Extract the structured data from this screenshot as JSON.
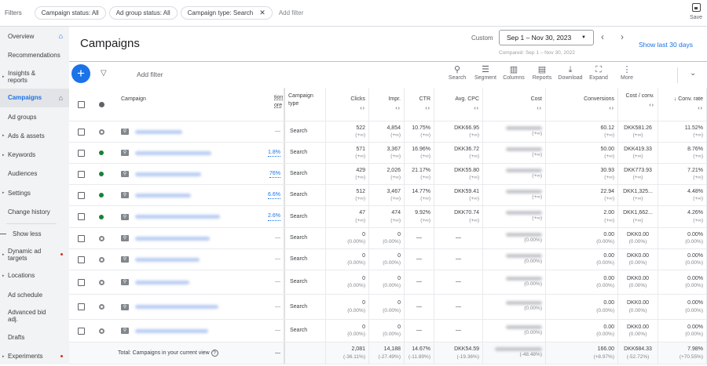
{
  "filters": {
    "label": "Filters",
    "chips": [
      "Campaign status: All",
      "Ad group status: All",
      "Campaign type: Search"
    ],
    "add_filter": "Add filter",
    "save": "Save"
  },
  "sidebar": {
    "items": [
      {
        "label": "Overview",
        "home": true
      },
      {
        "label": "Recommendations"
      },
      {
        "label": "Insights & reports",
        "arrow": true
      },
      {
        "label": "Campaigns",
        "active": true,
        "home": true
      },
      {
        "label": "Ad groups"
      },
      {
        "label": "Ads & assets",
        "arrow": true
      },
      {
        "label": "Keywords",
        "arrow": true
      },
      {
        "label": "Audiences"
      },
      {
        "label": "Settings",
        "arrow": true
      },
      {
        "label": "Change history"
      }
    ],
    "show_less": "Show less",
    "more_items": [
      {
        "label": "Dynamic ad targets",
        "arrow": true,
        "dot": true
      },
      {
        "label": "Locations",
        "arrow": true
      },
      {
        "label": "Ad schedule"
      },
      {
        "label": "Advanced bid adj."
      },
      {
        "label": "Drafts"
      },
      {
        "label": "Experiments",
        "arrow": true,
        "dot": true
      }
    ]
  },
  "header": {
    "title": "Campaigns",
    "custom": "Custom",
    "date_range": "Sep 1 – Nov 30, 2023",
    "compared": "Compared: Sep 1 – Nov 30, 2022",
    "show_last": "Show last 30 days"
  },
  "toolbar": {
    "add_filter": "Add filter",
    "tools": [
      {
        "label": "Search",
        "icon": "search-icon"
      },
      {
        "label": "Segment",
        "icon": "segment-icon"
      },
      {
        "label": "Columns",
        "icon": "columns-icon"
      },
      {
        "label": "Reports",
        "icon": "reports-icon"
      },
      {
        "label": "Download",
        "icon": "download-icon"
      },
      {
        "label": "Expand",
        "icon": "expand-icon"
      },
      {
        "label": "More",
        "icon": "more-icon"
      }
    ]
  },
  "columns": {
    "campaign": "Campaign",
    "opt": "tion\nore",
    "type": "Campaign type",
    "clicks": "Clicks",
    "impr": "Impr.",
    "ctr": "CTR",
    "cpc": "Avg. CPC",
    "cost": "Cost",
    "conv": "Conversions",
    "cpa": "Cost / conv.",
    "rate": "↓ Conv. rate"
  },
  "rows": [
    {
      "status": "paused",
      "opt": "—",
      "type": "Search",
      "clicks": "522",
      "impr": "4,854",
      "ctr": "10.75%",
      "cpc": "DKK66.95",
      "conv": "60.12",
      "cpa": "DKK581.26",
      "rate": "11.52%",
      "delta": "(+∞)"
    },
    {
      "status": "enabled",
      "opt": "1.8%",
      "type": "Search",
      "clicks": "571",
      "impr": "3,367",
      "ctr": "16.96%",
      "cpc": "DKK36.72",
      "conv": "50.00",
      "cpa": "DKK419.33",
      "rate": "8.76%",
      "delta": "(+∞)"
    },
    {
      "status": "enabled",
      "opt": "76%",
      "type": "Search",
      "clicks": "429",
      "impr": "2,026",
      "ctr": "21.17%",
      "cpc": "DKK55.80",
      "conv": "30.93",
      "cpa": "DKK773.93",
      "rate": "7.21%",
      "delta": "(+∞)"
    },
    {
      "status": "enabled",
      "opt": "6.6%",
      "type": "Search",
      "clicks": "512",
      "impr": "3,467",
      "ctr": "14.77%",
      "cpc": "DKK59.41",
      "conv": "22.94",
      "cpa": "DKK1,325...",
      "rate": "4.48%",
      "delta": "(+∞)"
    },
    {
      "status": "enabled",
      "opt": "2.6%",
      "type": "Search",
      "clicks": "47",
      "impr": "474",
      "ctr": "9.92%",
      "cpc": "DKK70.74",
      "conv": "2.00",
      "cpa": "DKK1,662...",
      "rate": "4.26%",
      "delta": "(+∞)"
    },
    {
      "status": "paused",
      "opt": "—",
      "type": "Search",
      "clicks": "0",
      "impr": "0",
      "ctr": "—",
      "cpc": "—",
      "conv": "0.00",
      "cpa": "DKK0.00",
      "rate": "0.00%",
      "delta": "(0.00%)"
    },
    {
      "status": "paused",
      "opt": "—",
      "type": "Search",
      "clicks": "0",
      "impr": "0",
      "ctr": "—",
      "cpc": "—",
      "conv": "0.00",
      "cpa": "DKK0.00",
      "rate": "0.00%",
      "delta": "(0.00%)"
    },
    {
      "status": "paused",
      "opt": "—",
      "type": "Search",
      "clicks": "0",
      "impr": "0",
      "ctr": "—",
      "cpc": "—",
      "conv": "0.00",
      "cpa": "DKK0.00",
      "rate": "0.00%",
      "delta": "(0.00%)"
    },
    {
      "status": "paused",
      "opt": "—",
      "type": "Search",
      "clicks": "0",
      "impr": "0",
      "ctr": "—",
      "cpc": "—",
      "conv": "0.00",
      "cpa": "DKK0.00",
      "rate": "0.00%",
      "delta": "(0.00%)"
    },
    {
      "status": "paused",
      "opt": "—",
      "type": "Search",
      "clicks": "0",
      "impr": "0",
      "ctr": "—",
      "cpc": "—",
      "conv": "0.00",
      "cpa": "DKK0.00",
      "rate": "0.00%",
      "delta": "(0.00%)"
    }
  ],
  "total": {
    "label": "Total: Campaigns in your current view",
    "opt": "—",
    "clicks": "2,081",
    "clicks_d": "(-36.11%)",
    "impr": "14,188",
    "impr_d": "(-27.49%)",
    "ctr": "14.67%",
    "ctr_d": "(-11.89%)",
    "cpc": "DKK54.59",
    "cpc_d": "(-19.36%)",
    "cost_d": "(-48.48%)",
    "conv": "166.00",
    "conv_d": "(+8.97%)",
    "cpa": "DKK684.33",
    "cpa_d": "(-52.72%)",
    "rate": "7.98%",
    "rate_d": "(+70.55%)"
  },
  "colors": {
    "accent": "#1a73e8",
    "enabled": "#188038",
    "alert": "#d93025"
  }
}
